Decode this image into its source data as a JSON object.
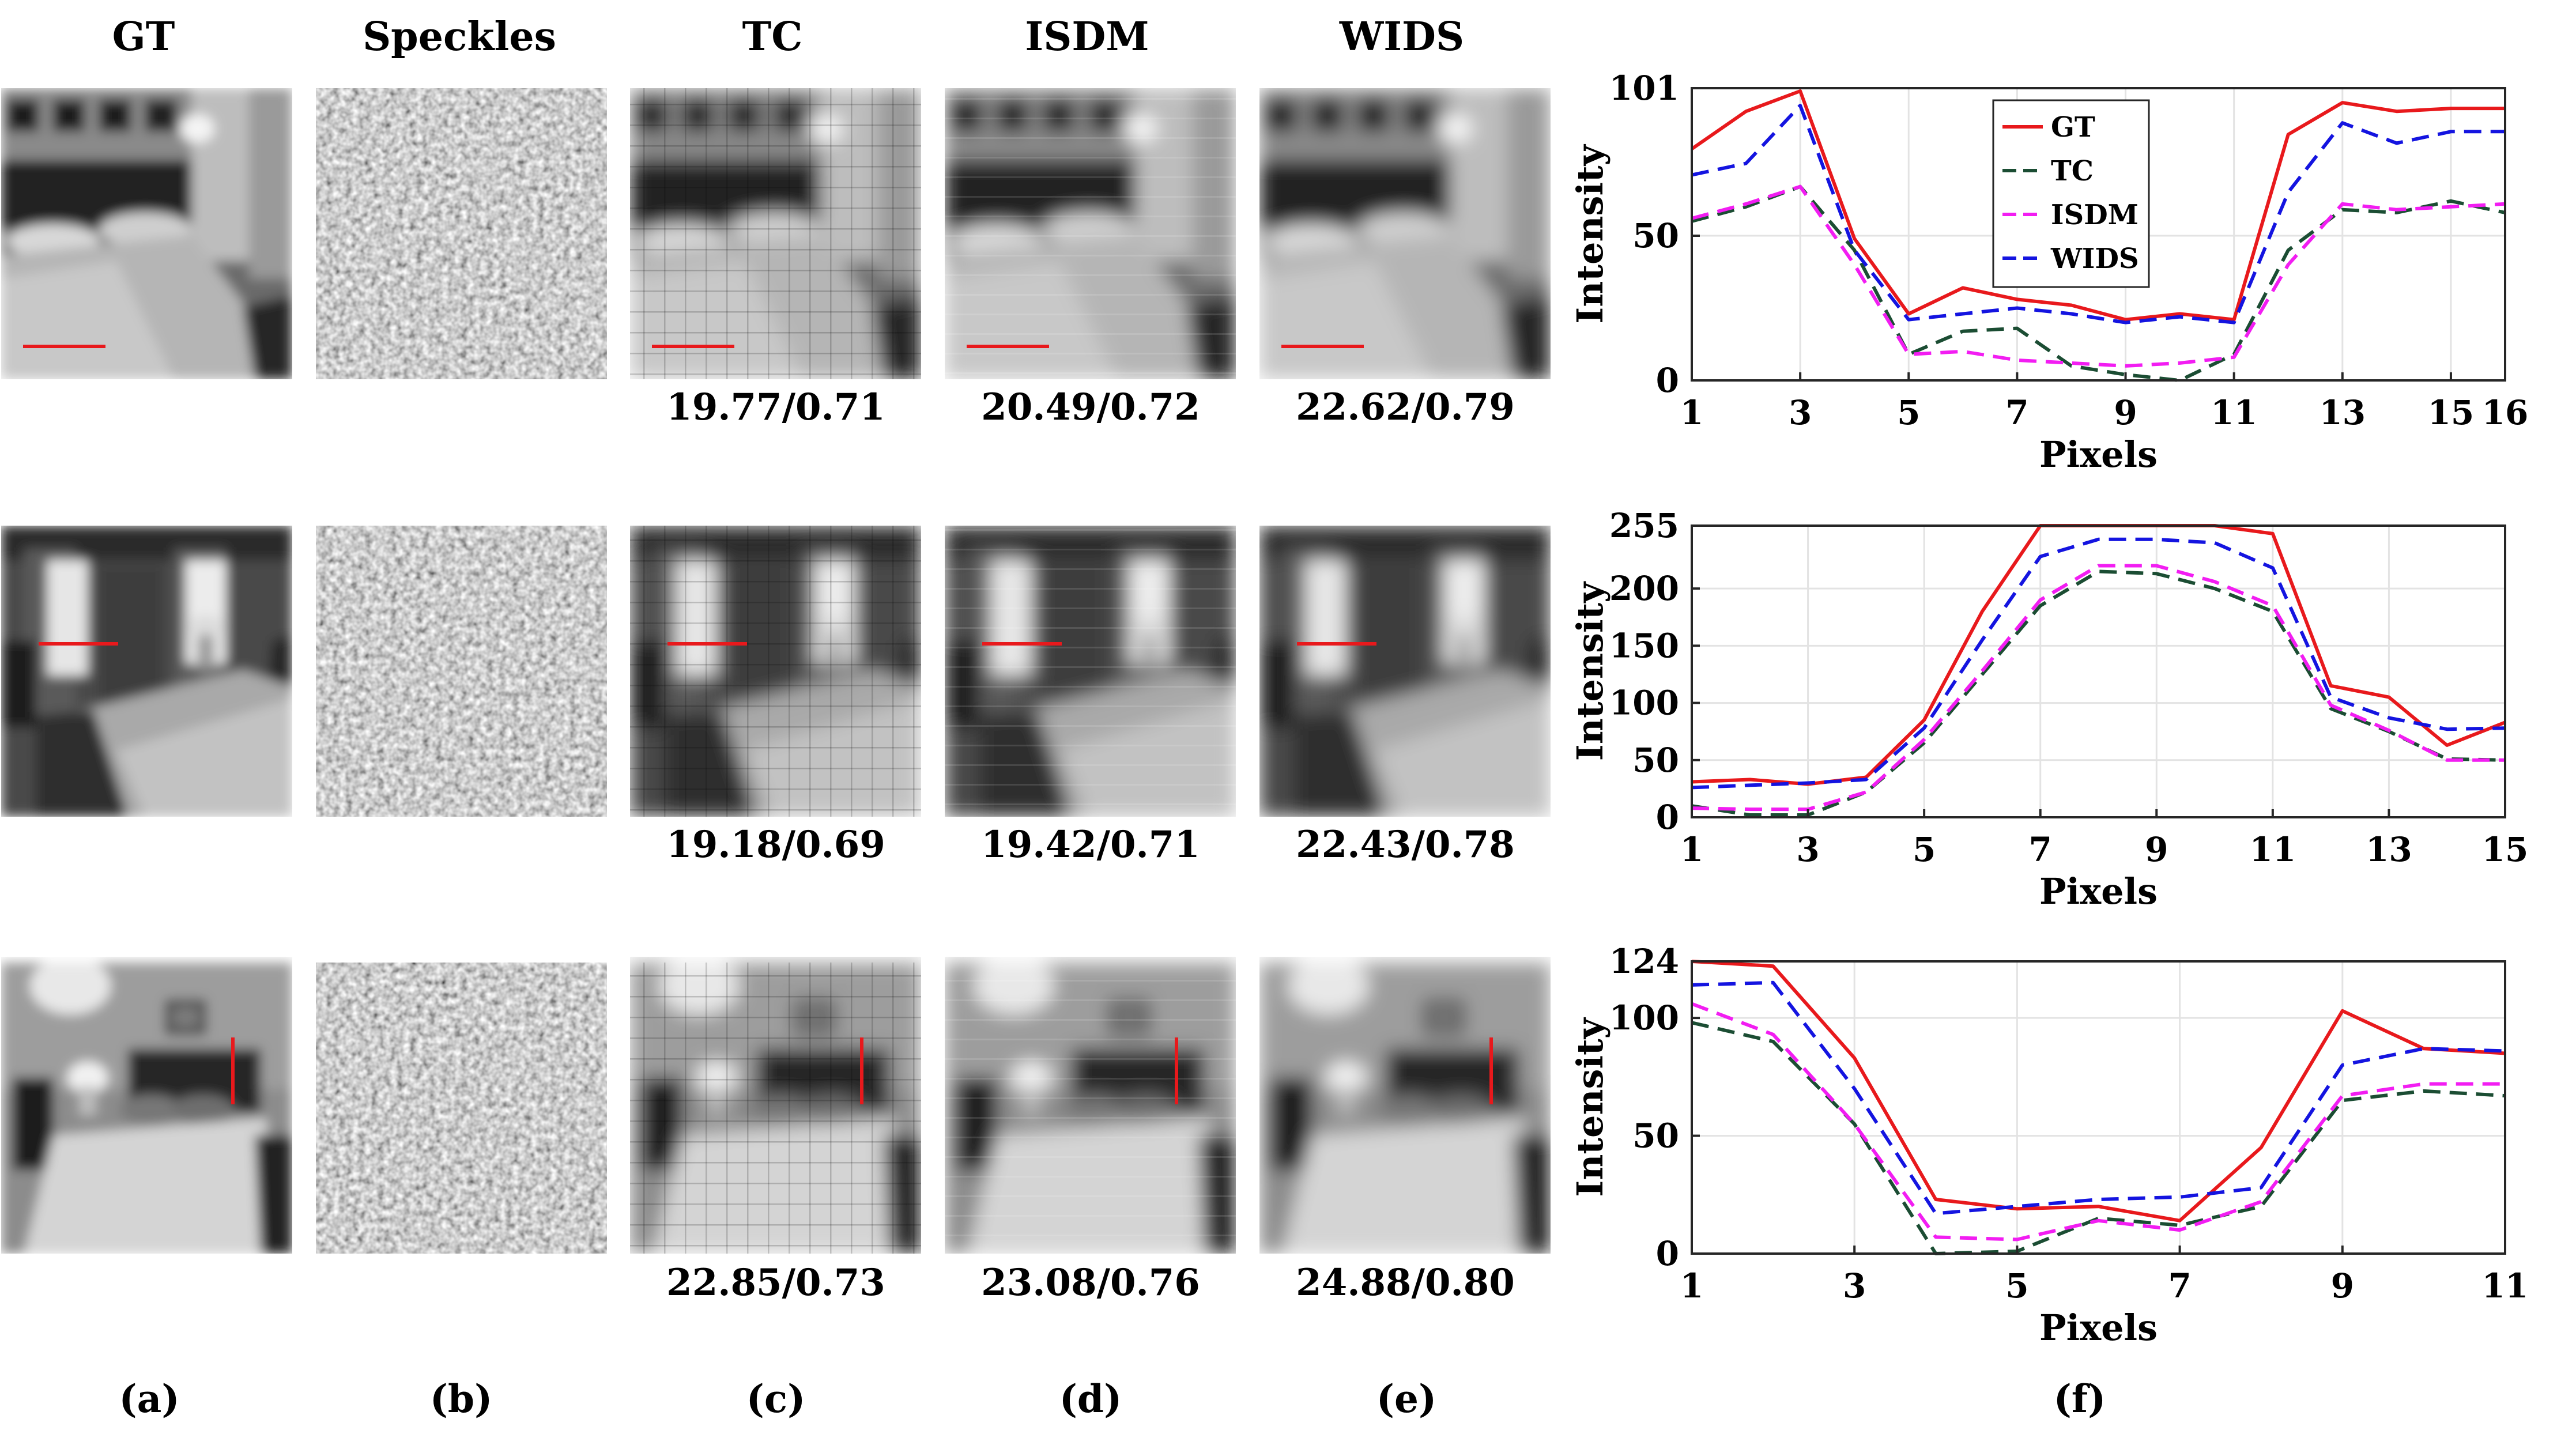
{
  "columns": [
    "GT",
    "Speckles",
    "TC",
    "ISDM",
    "WIDS"
  ],
  "metrics": [
    [
      "19.77/0.71",
      "20.49/0.72",
      "22.62/0.79"
    ],
    [
      "19.18/0.69",
      "19.42/0.71",
      "22.43/0.78"
    ],
    [
      "22.85/0.73",
      "23.08/0.76",
      "24.88/0.80"
    ]
  ],
  "subfigure_labels": [
    "(a)",
    "(b)",
    "(c)",
    "(d)",
    "(e)",
    "(f)"
  ],
  "colors": {
    "GT": "#e8191c",
    "TC": "#1b4d33",
    "ISDM": "#f21df2",
    "WIDS": "#1414e0",
    "marker": "#e8191c"
  },
  "chart_data": [
    {
      "type": "line",
      "xlabel": "Pixels",
      "ylabel": "Intensity",
      "xlim": [
        1,
        16
      ],
      "ylim": [
        0,
        101
      ],
      "xticks": [
        1,
        3,
        5,
        7,
        9,
        11,
        13,
        15,
        16
      ],
      "yticks": [
        0,
        50,
        101
      ],
      "legend": "top-center",
      "grid": true,
      "x": [
        1,
        2,
        3,
        4,
        5,
        6,
        7,
        8,
        9,
        10,
        11,
        12,
        13,
        14,
        15,
        16
      ],
      "series": [
        {
          "name": "GT",
          "values": [
            80,
            93,
            100,
            49,
            23,
            32,
            28,
            26,
            21,
            23,
            21,
            85,
            96,
            93,
            94,
            94
          ]
        },
        {
          "name": "TC",
          "values": [
            55,
            60,
            67,
            45,
            9,
            17,
            18,
            5,
            2,
            0,
            9,
            45,
            59,
            58,
            62,
            58
          ]
        },
        {
          "name": "ISDM",
          "values": [
            56,
            61,
            67,
            40,
            9,
            10,
            7,
            6,
            5,
            6,
            8,
            40,
            61,
            59,
            60,
            61
          ]
        },
        {
          "name": "WIDS",
          "values": [
            71,
            75,
            95,
            45,
            21,
            23,
            25,
            23,
            20,
            22,
            20,
            65,
            89,
            82,
            86,
            86
          ]
        }
      ]
    },
    {
      "type": "line",
      "xlabel": "Pixels",
      "ylabel": "Intensity",
      "xlim": [
        1,
        15
      ],
      "ylim": [
        0,
        255
      ],
      "xticks": [
        1,
        3,
        5,
        7,
        9,
        11,
        13,
        15
      ],
      "yticks": [
        0,
        50,
        100,
        150,
        200,
        255
      ],
      "legend": "none",
      "grid": true,
      "x": [
        1,
        2,
        3,
        4,
        5,
        6,
        7,
        8,
        9,
        10,
        11,
        12,
        13,
        14,
        15
      ],
      "series": [
        {
          "name": "GT",
          "values": [
            31,
            33,
            29,
            35,
            85,
            180,
            255,
            255,
            255,
            255,
            248,
            115,
            105,
            63,
            83
          ]
        },
        {
          "name": "TC",
          "values": [
            10,
            2,
            2,
            22,
            65,
            125,
            185,
            215,
            213,
            200,
            180,
            95,
            75,
            51,
            50
          ]
        },
        {
          "name": "ISDM",
          "values": [
            8,
            7,
            7,
            22,
            68,
            128,
            190,
            220,
            220,
            206,
            185,
            98,
            76,
            50,
            50
          ]
        },
        {
          "name": "WIDS",
          "values": [
            26,
            28,
            30,
            33,
            78,
            155,
            228,
            243,
            243,
            240,
            218,
            105,
            87,
            77,
            78
          ]
        }
      ]
    },
    {
      "type": "line",
      "xlabel": "Pixels",
      "ylabel": "Intensity",
      "xlim": [
        1,
        11
      ],
      "ylim": [
        0,
        124
      ],
      "xticks": [
        1,
        3,
        5,
        7,
        9,
        11
      ],
      "yticks": [
        0,
        50,
        100,
        124
      ],
      "legend": "none",
      "grid": true,
      "x": [
        1,
        2,
        3,
        4,
        5,
        6,
        7,
        8,
        9,
        10,
        11
      ],
      "series": [
        {
          "name": "GT",
          "values": [
            124,
            122,
            83,
            23,
            19,
            20,
            14,
            45,
            103,
            87,
            85
          ]
        },
        {
          "name": "TC",
          "values": [
            98,
            90,
            55,
            0,
            1,
            15,
            12,
            20,
            65,
            69,
            67
          ]
        },
        {
          "name": "ISDM",
          "values": [
            106,
            93,
            55,
            7,
            6,
            14,
            10,
            22,
            67,
            72,
            72
          ]
        },
        {
          "name": "WIDS",
          "values": [
            114,
            115,
            70,
            17,
            20,
            23,
            24,
            28,
            80,
            87,
            86
          ]
        }
      ]
    }
  ]
}
